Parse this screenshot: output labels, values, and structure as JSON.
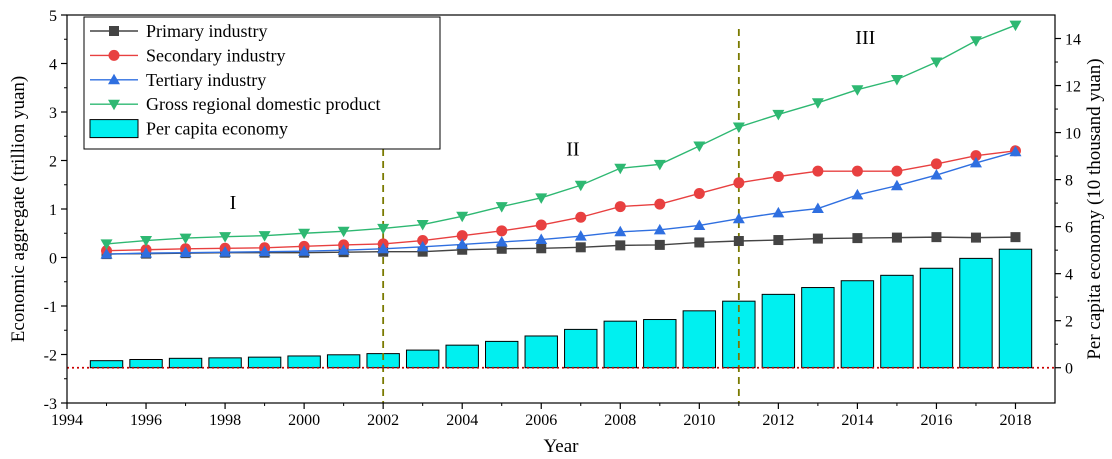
{
  "chart_data": {
    "type": "bar+line",
    "x": [
      1995,
      1996,
      1997,
      1998,
      1999,
      2000,
      2001,
      2002,
      2003,
      2004,
      2005,
      2006,
      2007,
      2008,
      2009,
      2010,
      2011,
      2012,
      2013,
      2014,
      2015,
      2016,
      2017,
      2018
    ],
    "xlabel": "Year",
    "xlim": [
      1994,
      2019
    ],
    "xticks": [
      1994,
      1996,
      1998,
      2000,
      2002,
      2004,
      2006,
      2008,
      2010,
      2012,
      2014,
      2016,
      2018
    ],
    "ylabel_left": "Economic aggregate (trillion yuan)",
    "ylim_left": [
      -3,
      5
    ],
    "yticks_left": [
      -3,
      -2,
      -1,
      0,
      1,
      2,
      3,
      4,
      5
    ],
    "ylabel_right": "Per capita economy (10 thousand yuan)",
    "ylim_right": [
      -1.5,
      15
    ],
    "yticks_right": [
      0,
      2,
      4,
      6,
      8,
      10,
      12,
      14
    ],
    "grid": false,
    "legend_position": "top-left",
    "series": [
      {
        "name": "Primary industry",
        "type": "line",
        "axis": "left",
        "marker": "square",
        "color": "#444444",
        "values": [
          0.07,
          0.08,
          0.09,
          0.1,
          0.1,
          0.1,
          0.11,
          0.12,
          0.12,
          0.16,
          0.18,
          0.19,
          0.21,
          0.25,
          0.26,
          0.31,
          0.34,
          0.36,
          0.39,
          0.4,
          0.41,
          0.42,
          0.41,
          0.42
        ]
      },
      {
        "name": "Secondary industry",
        "type": "line",
        "axis": "left",
        "marker": "circle",
        "color": "#e84040",
        "values": [
          0.14,
          0.16,
          0.18,
          0.19,
          0.2,
          0.23,
          0.26,
          0.28,
          0.35,
          0.45,
          0.55,
          0.67,
          0.83,
          1.05,
          1.1,
          1.32,
          1.54,
          1.67,
          1.78,
          1.78,
          1.78,
          1.93,
          2.1,
          2.2
        ]
      },
      {
        "name": "Tertiary industry",
        "type": "line",
        "axis": "left",
        "marker": "triangle-up",
        "color": "#2f6fe0",
        "values": [
          0.07,
          0.09,
          0.1,
          0.11,
          0.12,
          0.13,
          0.15,
          0.18,
          0.22,
          0.27,
          0.32,
          0.37,
          0.44,
          0.53,
          0.57,
          0.66,
          0.8,
          0.92,
          1.01,
          1.29,
          1.48,
          1.7,
          1.95,
          2.18
        ]
      },
      {
        "name": "Gross regional domestic product",
        "type": "line",
        "axis": "left",
        "marker": "triangle-down",
        "color": "#2eb872",
        "values": [
          0.28,
          0.35,
          0.4,
          0.43,
          0.45,
          0.5,
          0.54,
          0.6,
          0.68,
          0.85,
          1.05,
          1.23,
          1.49,
          1.84,
          1.92,
          2.3,
          2.69,
          2.95,
          3.19,
          3.46,
          3.67,
          4.03,
          4.47,
          4.79
        ]
      },
      {
        "name": "Per capita economy",
        "type": "bar",
        "axis": "right",
        "color": "#00f0f0",
        "values": [
          0.3,
          0.35,
          0.4,
          0.42,
          0.45,
          0.5,
          0.55,
          0.6,
          0.75,
          0.96,
          1.12,
          1.35,
          1.63,
          1.98,
          2.05,
          2.42,
          2.83,
          3.12,
          3.41,
          3.7,
          3.93,
          4.23,
          4.65,
          5.04
        ]
      }
    ],
    "annotations": [
      {
        "type": "vline",
        "x": 2002,
        "style": "dashed",
        "color": "#7a7a00"
      },
      {
        "type": "vline",
        "x": 2011,
        "style": "dashed",
        "color": "#7a7a00"
      },
      {
        "type": "hline",
        "y_right": 0,
        "style": "dotted",
        "color": "#cc0000"
      },
      {
        "type": "text",
        "text": "I",
        "x": 1998.2,
        "y_left": 1.0
      },
      {
        "type": "text",
        "text": "II",
        "x": 2006.8,
        "y_left": 2.1
      },
      {
        "type": "text",
        "text": "III",
        "x": 2014.2,
        "y_left": 4.4
      }
    ]
  }
}
